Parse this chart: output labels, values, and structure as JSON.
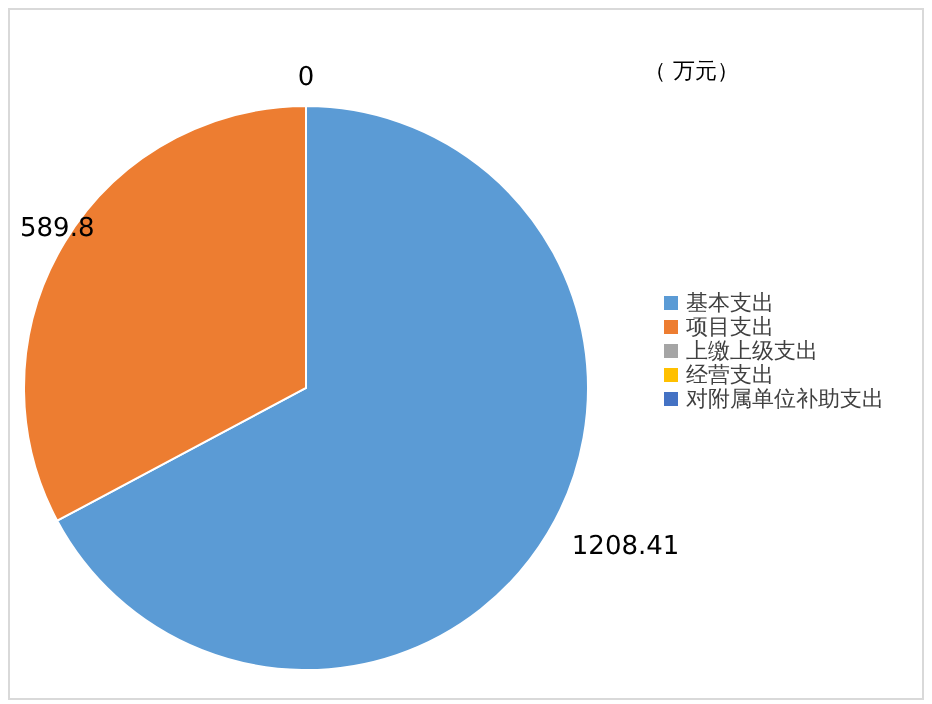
{
  "chart_data": {
    "type": "pie",
    "categories": [
      "基本支出",
      "项目支出",
      "上缴上级支出",
      "经营支出",
      "对附属单位补助支出"
    ],
    "values": [
      1208.41,
      589.8,
      0,
      0,
      0
    ],
    "colors": [
      "#5b9bd5",
      "#ed7d31",
      "#a5a5a5",
      "#ffc000",
      "#4472c4"
    ],
    "value_labels": [
      "1208.41",
      "589.8",
      "0",
      null,
      null
    ],
    "annotations": [
      "（ 万元）"
    ],
    "legend": "right"
  }
}
